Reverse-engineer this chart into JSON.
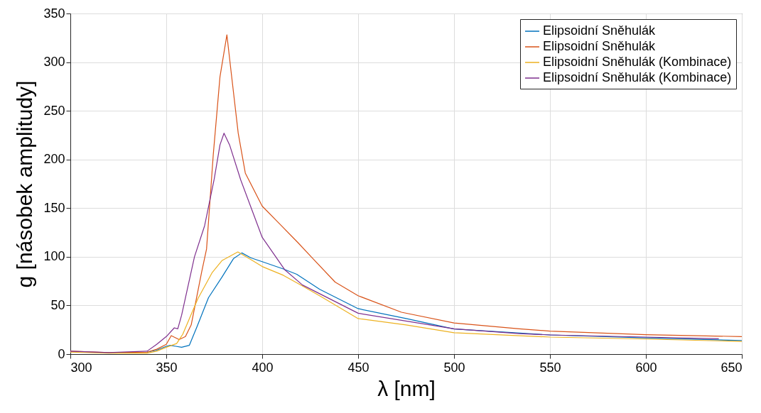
{
  "chart_data": {
    "type": "line",
    "xlabel": "λ [nm]",
    "ylabel": "g [násobek amplitudy]",
    "xlim": [
      300,
      650
    ],
    "xticks": [
      300,
      350,
      400,
      450,
      500,
      550,
      600,
      650
    ],
    "ylim": [
      0,
      350
    ],
    "yticks": [
      0,
      50,
      100,
      150,
      200,
      250,
      300,
      350
    ],
    "grid": true,
    "legend": "top right",
    "line_style": "solid",
    "series": [
      {
        "name": "Elipsoidní Sněhulák",
        "color": "#0072bd",
        "x": [
          340,
          345,
          350,
          352,
          355,
          358,
          362,
          366,
          372,
          379,
          385,
          389.4,
          394,
          400,
          411,
          418,
          430,
          450,
          475,
          500,
          550,
          600,
          650
        ],
        "values": [
          2,
          4,
          8,
          9,
          8,
          7,
          9,
          28,
          58,
          79,
          98,
          104,
          99,
          95,
          87.5,
          82,
          66.6,
          46.7,
          36.5,
          25.8,
          19.7,
          16.7,
          14
        ]
      },
      {
        "name": "Elipsoidní Sněhulák",
        "color": "#d95319",
        "x": [
          300,
          320,
          340,
          345,
          350,
          352.6,
          356.7,
          360,
          363,
          368.4,
          371,
          374.5,
          378,
          381.6,
          383.8,
          387.5,
          391.2,
          400,
          408.5,
          418.4,
          425.8,
          438,
          450,
          472.6,
          500,
          534,
          550,
          600,
          650
        ],
        "values": [
          3,
          1.5,
          2,
          5,
          10,
          19,
          15,
          18,
          30,
          84,
          108,
          205,
          285,
          328,
          290,
          227,
          186,
          152,
          135,
          115,
          99.4,
          74,
          60,
          43,
          32,
          26,
          23.6,
          20,
          18
        ]
      },
      {
        "name": "Elipsoidní Sněhulák (Kombinace)",
        "color": "#edb120",
        "x": [
          300,
          320,
          340,
          345,
          350,
          355.4,
          358.6,
          366.5,
          374,
          379,
          387.3,
          395,
          400,
          411,
          421,
          430.7,
          450,
          475,
          500,
          550,
          600,
          650
        ],
        "values": [
          2,
          1,
          1,
          3,
          7,
          10.8,
          20.4,
          57,
          84,
          96,
          105,
          96,
          90,
          81,
          70,
          59,
          36.5,
          30,
          22,
          17.5,
          15.5,
          13
        ]
      },
      {
        "name": "Elipsoidní Sněhulák (Kombinace)",
        "color": "#7e2f8e",
        "x": [
          300,
          320,
          340,
          345,
          350,
          354.2,
          356,
          358,
          364.7,
          370,
          375,
          378,
          380.1,
          383,
          388.8,
          400,
          411.7,
          421,
          450,
          500,
          534,
          550,
          600,
          638
        ],
        "values": [
          3,
          1.5,
          3,
          10,
          18,
          27,
          26,
          40,
          100,
          132,
          180,
          215,
          227,
          215,
          179,
          120,
          86.8,
          71,
          42,
          26,
          21,
          19.7,
          17.5,
          15.8
        ]
      }
    ]
  }
}
